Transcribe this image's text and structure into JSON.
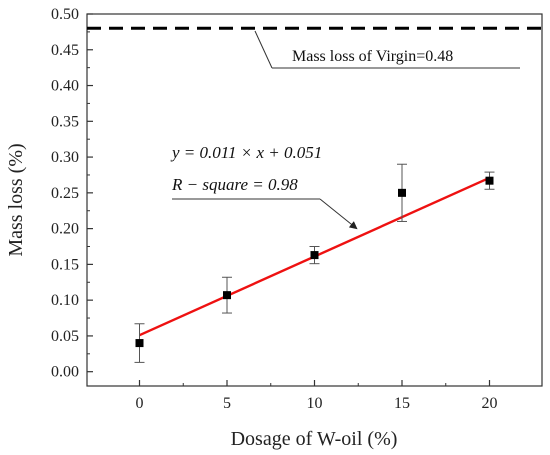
{
  "chart_data": {
    "type": "scatter",
    "xlabel": "Dosage of W-oil (%)",
    "ylabel": "Mass loss (%)",
    "xlim": [
      -3,
      23
    ],
    "ylim": [
      -0.02,
      0.5
    ],
    "x_ticks": [
      "0",
      "5",
      "10",
      "15",
      "20"
    ],
    "y_ticks": [
      "0.00",
      "0.05",
      "0.10",
      "0.15",
      "0.20",
      "0.25",
      "0.30",
      "0.35",
      "0.40",
      "0.45",
      "0.50"
    ],
    "grid": false,
    "series": [
      {
        "x": [
          0,
          5,
          10,
          15,
          20
        ],
        "y": [
          0.04,
          0.107,
          0.163,
          0.25,
          0.267
        ],
        "error": [
          0.027,
          0.025,
          0.012,
          0.04,
          0.012
        ],
        "color": "#000000"
      }
    ],
    "fit_line": {
      "slope": 0.011,
      "intercept": 0.051,
      "x_range": [
        0,
        20
      ],
      "color": "#ee1111"
    },
    "reference_line": {
      "y": 0.48,
      "style": "dashed",
      "color": "#000000"
    },
    "annotations": {
      "virgin_label": "Mass loss of Virgin=0.48",
      "equation": "y = 0.011 × x + 0.051",
      "r_square": "R − square = 0.98"
    }
  }
}
